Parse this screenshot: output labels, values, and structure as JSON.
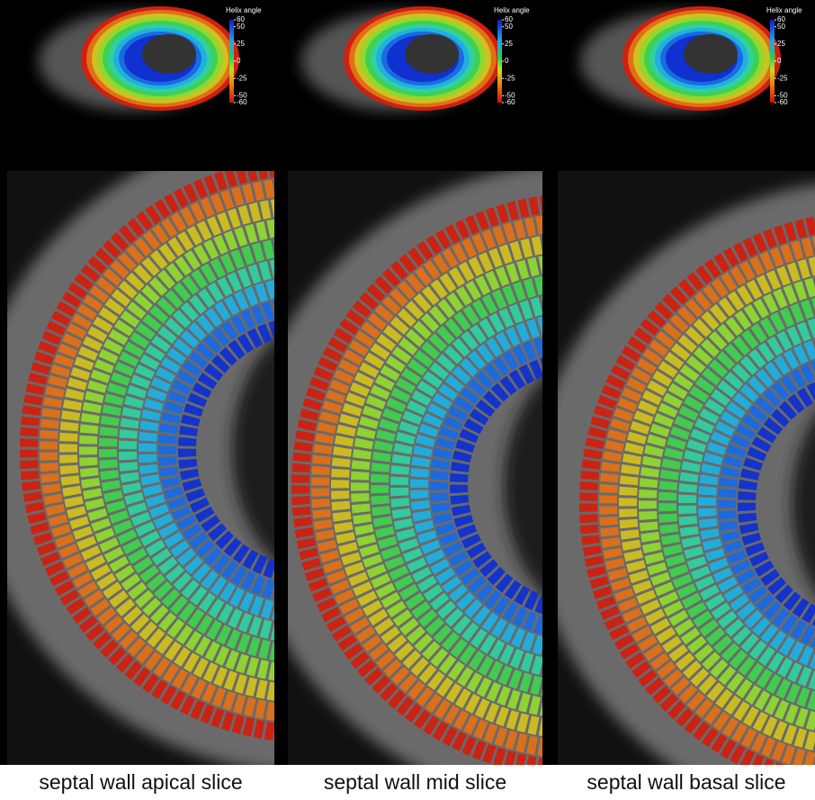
{
  "panels": [
    {
      "caption": "septal wall apical slice",
      "colorbar": {
        "title": "Helix angle",
        "ticks": [
          60,
          50,
          25,
          0,
          -25,
          -50,
          -60
        ]
      }
    },
    {
      "caption": "septal wall mid slice",
      "colorbar": {
        "title": "Helix angle",
        "ticks": [
          60,
          50,
          25,
          0,
          -25,
          -50,
          -60
        ]
      }
    },
    {
      "caption": "septal wall basal slice",
      "colorbar": {
        "title": "Helix angle",
        "ticks": [
          60,
          50,
          25,
          0,
          -25,
          -50,
          -60
        ]
      }
    }
  ]
}
